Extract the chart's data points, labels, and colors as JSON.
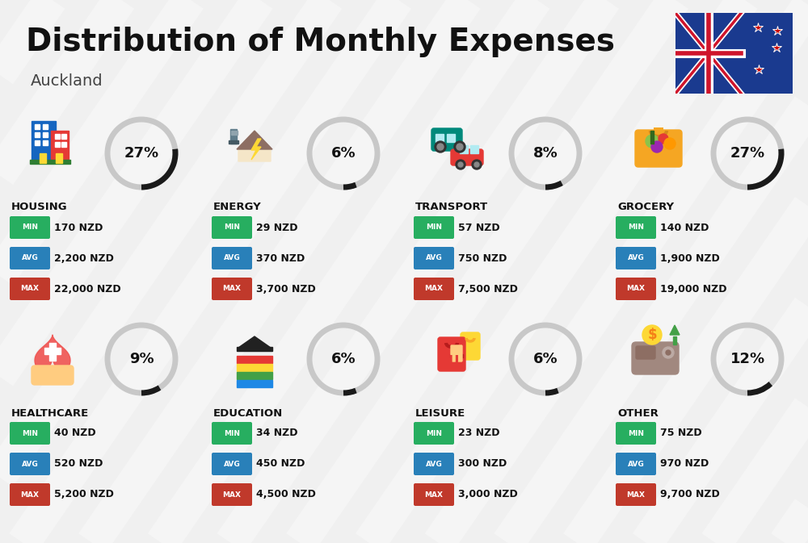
{
  "title": "Distribution of Monthly Expenses",
  "subtitle": "Auckland",
  "bg_color": "#f0f0f0",
  "categories": [
    {
      "name": "HOUSING",
      "pct": 27,
      "min": "170 NZD",
      "avg": "2,200 NZD",
      "max": "22,000 NZD",
      "row": 0,
      "col": 0,
      "icon_type": "housing"
    },
    {
      "name": "ENERGY",
      "pct": 6,
      "min": "29 NZD",
      "avg": "370 NZD",
      "max": "3,700 NZD",
      "row": 0,
      "col": 1,
      "icon_type": "energy"
    },
    {
      "name": "TRANSPORT",
      "pct": 8,
      "min": "57 NZD",
      "avg": "750 NZD",
      "max": "7,500 NZD",
      "row": 0,
      "col": 2,
      "icon_type": "transport"
    },
    {
      "name": "GROCERY",
      "pct": 27,
      "min": "140 NZD",
      "avg": "1,900 NZD",
      "max": "19,000 NZD",
      "row": 0,
      "col": 3,
      "icon_type": "grocery"
    },
    {
      "name": "HEALTHCARE",
      "pct": 9,
      "min": "40 NZD",
      "avg": "520 NZD",
      "max": "5,200 NZD",
      "row": 1,
      "col": 0,
      "icon_type": "healthcare"
    },
    {
      "name": "EDUCATION",
      "pct": 6,
      "min": "34 NZD",
      "avg": "450 NZD",
      "max": "4,500 NZD",
      "row": 1,
      "col": 1,
      "icon_type": "education"
    },
    {
      "name": "LEISURE",
      "pct": 6,
      "min": "23 NZD",
      "avg": "300 NZD",
      "max": "3,000 NZD",
      "row": 1,
      "col": 2,
      "icon_type": "leisure"
    },
    {
      "name": "OTHER",
      "pct": 12,
      "min": "75 NZD",
      "avg": "970 NZD",
      "max": "9,700 NZD",
      "row": 1,
      "col": 3,
      "icon_type": "other"
    }
  ],
  "min_color": "#27ae60",
  "avg_color": "#2980b9",
  "max_color": "#c0392b",
  "arc_fill_color": "#1a1a1a",
  "arc_bg_color": "#c8c8c8",
  "arc_linewidth": 5,
  "stripe_color": "#ffffff",
  "stripe_alpha": 0.35
}
